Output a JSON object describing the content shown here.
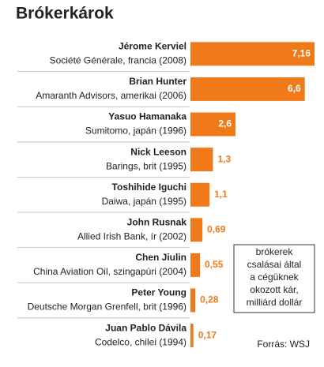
{
  "chart_data": {
    "type": "bar",
    "title": "Brókerkárok",
    "categories": [
      "Jérome Kerviel",
      "Brian Hunter",
      "Yasuo Hamanaka",
      "Nick Leeson",
      "Toshihide Iguchi",
      "John Rusnak",
      "Chen Jiulin",
      "Peter Young",
      "Juan Pablo Dávila"
    ],
    "descriptions": [
      "Société Générale, francia (2008)",
      "Amaranth Advisors, amerikai (2006)",
      "Sumitomo, japán (1996)",
      "Barings, brit (1995)",
      "Daiwa, japán (1995)",
      "Allied Irish Bank, ír (2002)",
      "China Aviation Oil, szingapúri (2004)",
      "Deutsche Morgan Grenfell, brit (1996)",
      "Codelco, chilei (1994)"
    ],
    "values": [
      7.16,
      6.6,
      2.6,
      1.3,
      1.1,
      0.69,
      0.55,
      0.28,
      0.17
    ],
    "value_labels": [
      "7,16",
      "6,6",
      "2,6",
      "1,3",
      "1,1",
      "0,69",
      "0,55",
      "0,28",
      "0,17"
    ],
    "color": "#f07a19",
    "annotation": [
      "brókerek",
      "csalásai által",
      "a cégüknek",
      "okozott kár,",
      "milliárd dollár"
    ],
    "source": "Forrás: WSJ"
  }
}
